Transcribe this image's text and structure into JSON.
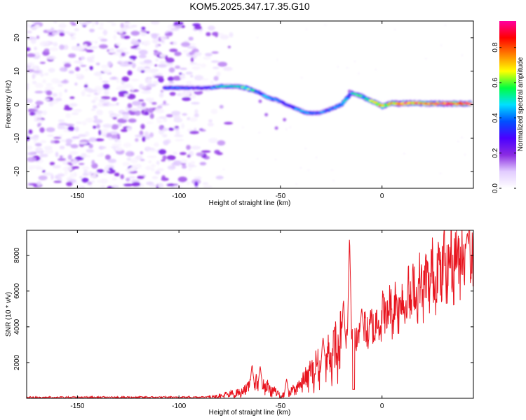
{
  "title": "KOM5.2025.347.17.35.G10",
  "chart_data": [
    {
      "type": "heatmap",
      "name": "spectrogram",
      "xlabel": "Height of straight line (km)",
      "ylabel": "Frequency (Hz)",
      "xlim": [
        -175,
        45
      ],
      "ylim": [
        -25,
        25
      ],
      "xticks": [
        -150,
        -100,
        -50,
        0
      ],
      "yticks": [
        -20,
        -10,
        0,
        10,
        20
      ],
      "colorbar": {
        "label": "Normalized spectral amplitude",
        "range": [
          0,
          0.95
        ],
        "ticks": [
          0.0,
          0.2,
          0.4,
          0.6,
          0.8
        ],
        "tick_labels": [
          "0.0",
          "0.2",
          "0.4",
          "0.6",
          "0.8"
        ],
        "colors": [
          "#ffffff",
          "#e2ccff",
          "#8a2be2",
          "#4b00ff",
          "#0050ff",
          "#00e0ff",
          "#00ff40",
          "#ffff00",
          "#ff8000",
          "#ff0000",
          "#ff00a0"
        ]
      },
      "noise_region_x": [
        -175,
        -80
      ],
      "signal_track": [
        {
          "x": -107,
          "f": 5,
          "a": 0.35
        },
        {
          "x": -100,
          "f": 5,
          "a": 0.4
        },
        {
          "x": -93,
          "f": 5,
          "a": 0.3
        },
        {
          "x": -84,
          "f": 5,
          "a": 0.35
        },
        {
          "x": -80,
          "f": 5.5,
          "a": 0.5
        },
        {
          "x": -72,
          "f": 5.5,
          "a": 0.45
        },
        {
          "x": -67,
          "f": 5,
          "a": 0.6
        },
        {
          "x": -60,
          "f": 3.5,
          "a": 0.35
        },
        {
          "x": -56,
          "f": 2,
          "a": 0.5
        },
        {
          "x": -52,
          "f": 1.5,
          "a": 0.4
        },
        {
          "x": -47,
          "f": 0,
          "a": 0.3
        },
        {
          "x": -43,
          "f": -1,
          "a": 0.4
        },
        {
          "x": -37,
          "f": -2.5,
          "a": 0.45
        },
        {
          "x": -31,
          "f": -2.5,
          "a": 0.4
        },
        {
          "x": -26,
          "f": -1.5,
          "a": 0.35
        },
        {
          "x": -20,
          "f": 0,
          "a": 0.5
        },
        {
          "x": -15,
          "f": 3.5,
          "a": 0.45
        },
        {
          "x": -10,
          "f": 2.5,
          "a": 0.55
        },
        {
          "x": -7,
          "f": 1.5,
          "a": 0.5
        },
        {
          "x": -3,
          "f": 0.5,
          "a": 0.7
        },
        {
          "x": 0,
          "f": -0.5,
          "a": 0.75
        },
        {
          "x": 5,
          "f": 0.5,
          "a": 0.7
        },
        {
          "x": 8,
          "f": 0.3,
          "a": 0.9
        },
        {
          "x": 15,
          "f": 0.5,
          "a": 0.8
        },
        {
          "x": 22,
          "f": 0.3,
          "a": 0.85
        },
        {
          "x": 28,
          "f": 0.3,
          "a": 0.8
        },
        {
          "x": 35,
          "f": 0.3,
          "a": 0.9
        },
        {
          "x": 44,
          "f": 0.3,
          "a": 0.85
        }
      ]
    },
    {
      "type": "line",
      "name": "snr",
      "xlabel": "Height of straight line (km)",
      "ylabel": "SNR (10 * v/v)",
      "xlim": [
        -175,
        45
      ],
      "ylim": [
        0,
        9400
      ],
      "xticks": [
        -150,
        -100,
        -50,
        0
      ],
      "yticks": [
        2000,
        4000,
        6000,
        8000
      ],
      "color": "#e8141e",
      "trend": [
        {
          "x": -175,
          "y": 50
        },
        {
          "x": -90,
          "y": 60
        },
        {
          "x": -80,
          "y": 120
        },
        {
          "x": -70,
          "y": 300
        },
        {
          "x": -65,
          "y": 700
        },
        {
          "x": -62,
          "y": 800
        },
        {
          "x": -57,
          "y": 600
        },
        {
          "x": -50,
          "y": 200
        },
        {
          "x": -45,
          "y": 300
        },
        {
          "x": -40,
          "y": 800
        },
        {
          "x": -35,
          "y": 1400
        },
        {
          "x": -30,
          "y": 1900
        },
        {
          "x": -25,
          "y": 2400
        },
        {
          "x": -20,
          "y": 2900
        },
        {
          "x": -15,
          "y": 3100
        },
        {
          "x": -10,
          "y": 3600
        },
        {
          "x": -5,
          "y": 3900
        },
        {
          "x": 0,
          "y": 4600
        },
        {
          "x": 10,
          "y": 5400
        },
        {
          "x": 20,
          "y": 6300
        },
        {
          "x": 30,
          "y": 7300
        },
        {
          "x": 38,
          "y": 7900
        },
        {
          "x": 45,
          "y": 8200
        }
      ],
      "spikes": [
        {
          "x": -64,
          "y": 1900
        },
        {
          "x": -60,
          "y": 1800
        },
        {
          "x": -47,
          "y": 1100
        },
        {
          "x": -29,
          "y": 3400
        },
        {
          "x": -19,
          "y": 5600
        },
        {
          "x": -16,
          "y": 9200
        },
        {
          "x": -14,
          "y": 4800
        },
        {
          "x": -10,
          "y": 5100
        },
        {
          "x": 42,
          "y": 9300
        }
      ],
      "dips": [
        {
          "x": -50,
          "y": 30
        },
        {
          "x": -14,
          "y": 500
        }
      ]
    }
  ]
}
